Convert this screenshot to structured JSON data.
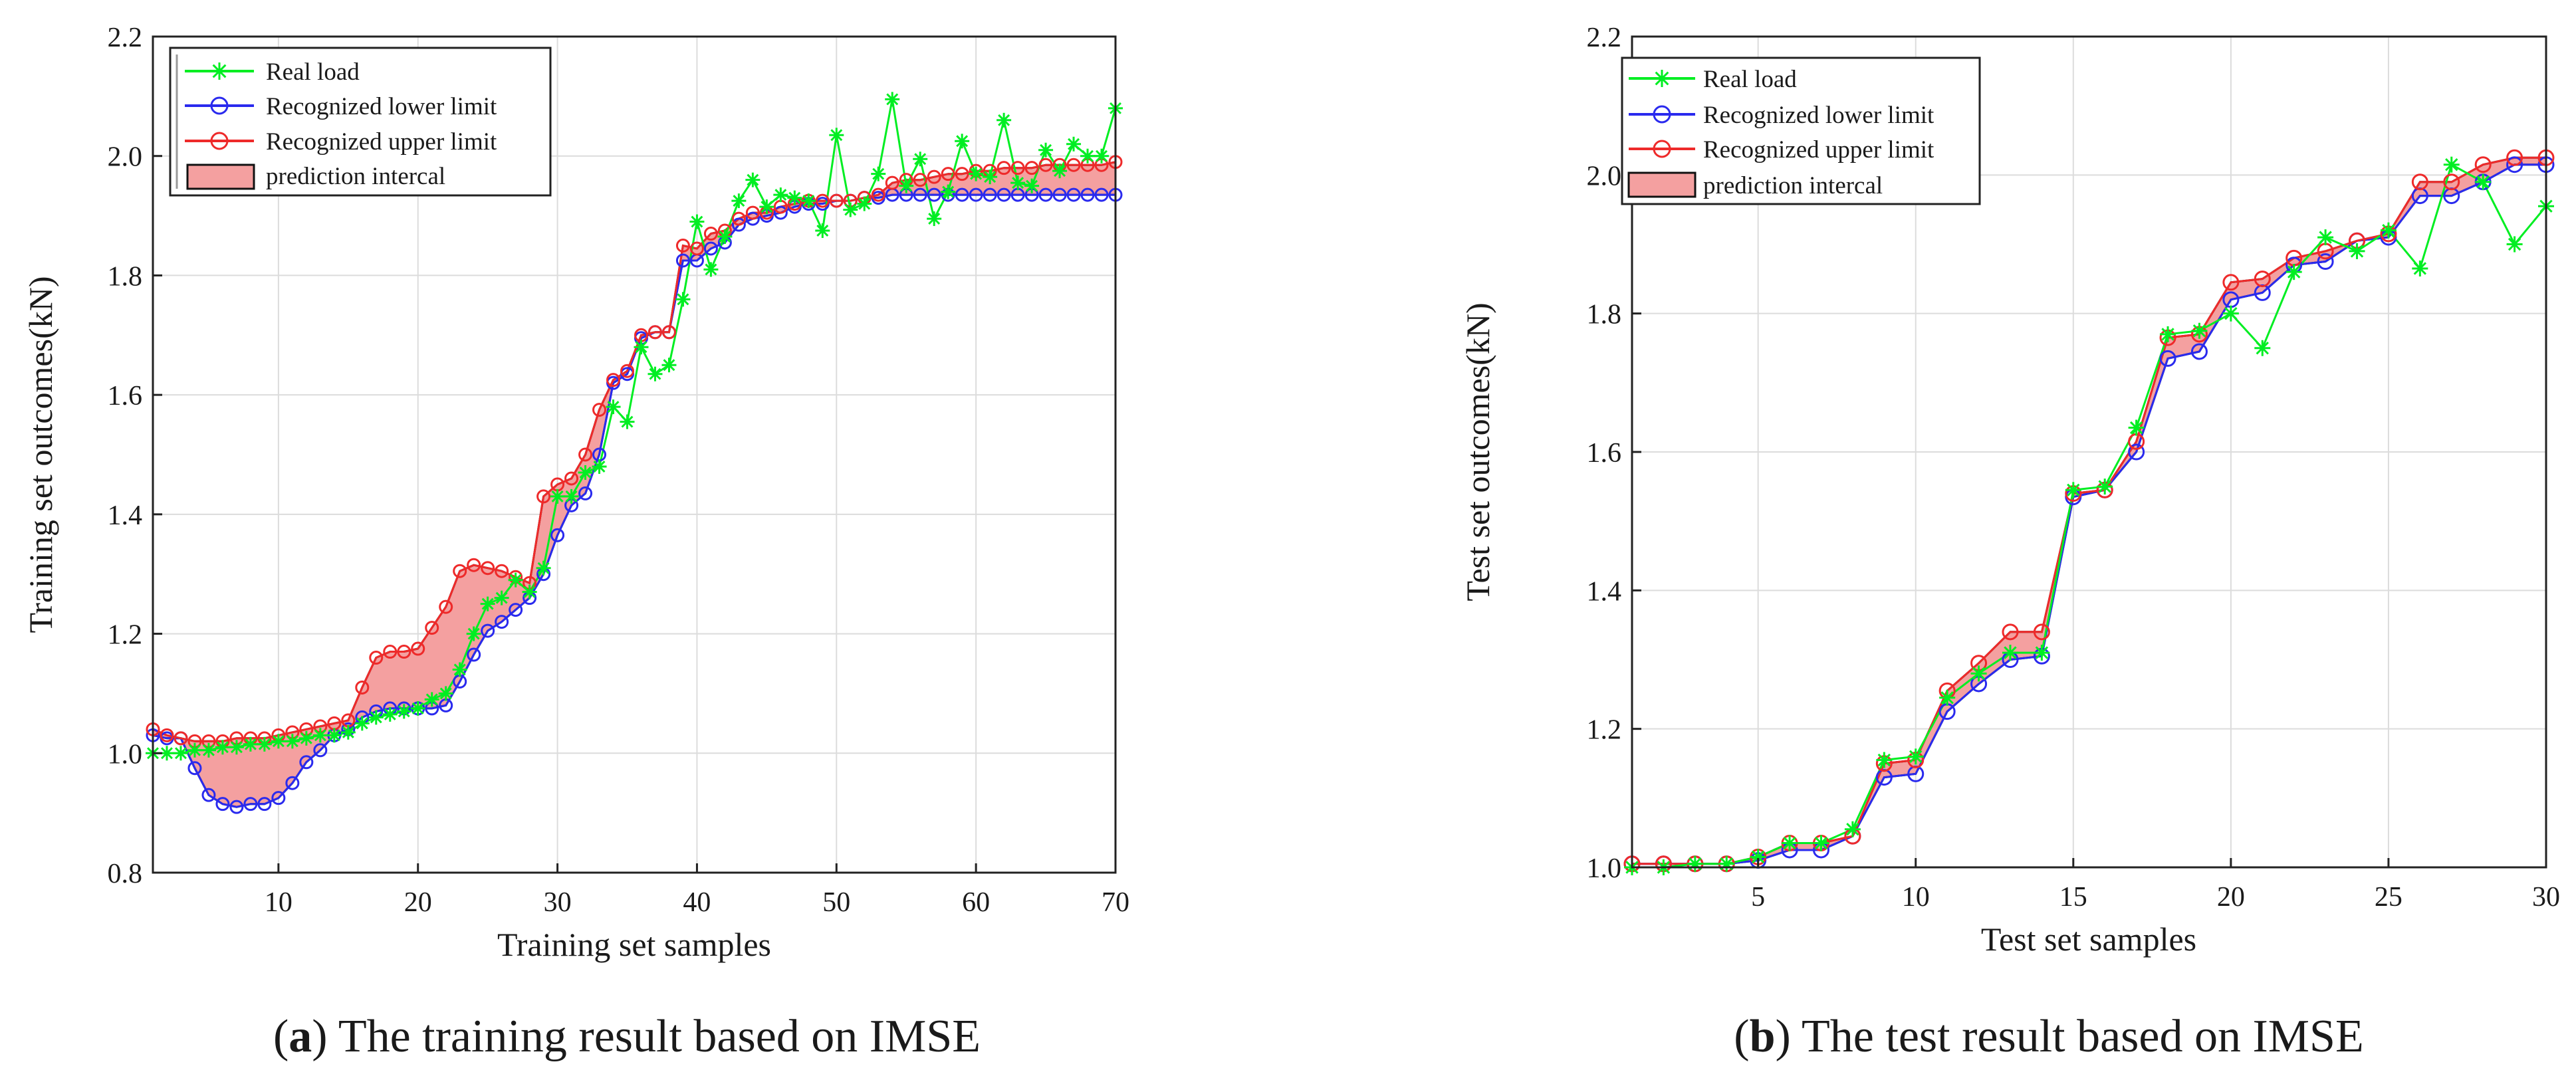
{
  "colors": {
    "real": "#00ee22",
    "lower": "#2a2aee",
    "upper": "#ee2a2a",
    "band": "#f4a0a0",
    "grid": "#dcdcdc",
    "axis": "#222222",
    "envelope": "#111111"
  },
  "icons": {
    "real": "asterisk-marker",
    "lower": "circle-marker",
    "upper": "circle-marker",
    "band": "filled-rect"
  },
  "chart_data": [
    {
      "type": "line",
      "panel": "a",
      "caption_letter": "a",
      "caption_text": ") The training result based on IMSE",
      "caption_open": "(",
      "xlabel": "Training set samples",
      "ylabel": "Training set outcomes(kN)",
      "xlim": [
        1,
        70
      ],
      "ylim": [
        0.8,
        2.2
      ],
      "xticks": [
        10,
        20,
        30,
        40,
        50,
        60,
        70
      ],
      "yticks": [
        0.8,
        1.0,
        1.2,
        1.4,
        1.6,
        1.8,
        2.0,
        2.2
      ],
      "ytick_labels": [
        "0.8",
        "1.0",
        "1.2",
        "1.4",
        "1.6",
        "1.8",
        "2.0",
        "2.2"
      ],
      "xtick_labels": [
        "10",
        "20",
        "30",
        "40",
        "50",
        "60",
        "70"
      ],
      "grid": true,
      "legend_position": "top-left",
      "legend": [
        "Real load",
        "Recognized lower limit",
        "Recognized upper limit",
        "prediction intercal"
      ],
      "x": [
        1,
        2,
        3,
        4,
        5,
        6,
        7,
        8,
        9,
        10,
        11,
        12,
        13,
        14,
        15,
        16,
        17,
        18,
        19,
        20,
        21,
        22,
        23,
        24,
        25,
        26,
        27,
        28,
        29,
        30,
        31,
        32,
        33,
        34,
        35,
        36,
        37,
        38,
        39,
        40,
        41,
        42,
        43,
        44,
        45,
        46,
        47,
        48,
        49,
        50,
        51,
        52,
        53,
        54,
        55,
        56,
        57,
        58,
        59,
        60,
        61,
        62,
        63,
        64,
        65,
        66,
        67,
        68,
        69,
        70
      ],
      "series": [
        {
          "name": "Real load",
          "key": "real",
          "values": [
            1.0,
            1.0,
            1.0,
            1.005,
            1.005,
            1.01,
            1.01,
            1.015,
            1.015,
            1.02,
            1.02,
            1.025,
            1.03,
            1.03,
            1.035,
            1.05,
            1.06,
            1.065,
            1.07,
            1.075,
            1.09,
            1.1,
            1.14,
            1.2,
            1.25,
            1.26,
            1.29,
            1.27,
            1.31,
            1.43,
            1.43,
            1.47,
            1.48,
            1.58,
            1.555,
            1.68,
            1.635,
            1.65,
            1.76,
            1.89,
            1.81,
            1.865,
            1.925,
            1.96,
            1.915,
            1.935,
            1.93,
            1.925,
            1.875,
            2.035,
            1.91,
            1.92,
            1.97,
            2.095,
            1.95,
            1.995,
            1.895,
            1.94,
            2.025,
            1.97,
            1.965,
            2.06,
            1.955,
            1.95,
            2.01,
            1.975,
            2.02,
            2.0,
            2.0,
            2.08
          ]
        },
        {
          "name": "Recognized lower limit",
          "key": "lower",
          "values": [
            1.03,
            1.025,
            1.025,
            0.975,
            0.93,
            0.915,
            0.91,
            0.915,
            0.915,
            0.925,
            0.95,
            0.985,
            1.005,
            1.03,
            1.04,
            1.06,
            1.07,
            1.075,
            1.075,
            1.075,
            1.075,
            1.08,
            1.12,
            1.165,
            1.205,
            1.22,
            1.24,
            1.26,
            1.3,
            1.365,
            1.415,
            1.435,
            1.5,
            1.62,
            1.635,
            1.695,
            1.705,
            1.705,
            1.825,
            1.825,
            1.845,
            1.855,
            1.885,
            1.895,
            1.9,
            1.905,
            1.915,
            1.92,
            1.92,
            1.925,
            1.925,
            1.93,
            1.93,
            1.935,
            1.935,
            1.935,
            1.935,
            1.935,
            1.935,
            1.935,
            1.935,
            1.935,
            1.935,
            1.935,
            1.935,
            1.935,
            1.935,
            1.935,
            1.935,
            1.935
          ]
        },
        {
          "name": "Recognized upper limit",
          "key": "upper",
          "values": [
            1.04,
            1.03,
            1.025,
            1.02,
            1.02,
            1.02,
            1.025,
            1.025,
            1.025,
            1.03,
            1.035,
            1.04,
            1.045,
            1.05,
            1.055,
            1.11,
            1.16,
            1.17,
            1.17,
            1.175,
            1.21,
            1.245,
            1.305,
            1.315,
            1.31,
            1.305,
            1.295,
            1.285,
            1.43,
            1.45,
            1.46,
            1.5,
            1.575,
            1.625,
            1.64,
            1.7,
            1.705,
            1.705,
            1.85,
            1.845,
            1.87,
            1.875,
            1.895,
            1.905,
            1.905,
            1.915,
            1.92,
            1.925,
            1.925,
            1.925,
            1.925,
            1.93,
            1.935,
            1.955,
            1.96,
            1.96,
            1.965,
            1.97,
            1.97,
            1.975,
            1.975,
            1.98,
            1.98,
            1.98,
            1.985,
            1.985,
            1.985,
            1.985,
            1.985,
            1.99
          ]
        }
      ]
    },
    {
      "type": "line",
      "panel": "b",
      "caption_letter": "b",
      "caption_text": ") The test result based on IMSE",
      "caption_open": "(",
      "xlabel": "Test set samples",
      "ylabel": "Test set outcomes(kN)",
      "xlim": [
        1,
        30
      ],
      "ylim": [
        1.0,
        2.2
      ],
      "xticks": [
        5,
        10,
        15,
        20,
        25,
        30
      ],
      "yticks": [
        1.0,
        1.2,
        1.4,
        1.6,
        1.8,
        2.0,
        2.2
      ],
      "ytick_labels": [
        "1.0",
        "1.2",
        "1.4",
        "1.6",
        "1.8",
        "2.0",
        "2.2"
      ],
      "xtick_labels": [
        "5",
        "10",
        "15",
        "20",
        "25",
        "30"
      ],
      "grid": true,
      "legend_position": "top-left",
      "legend": [
        "Real load",
        "Recognized lower limit",
        "Recognized upper limit",
        "prediction intercal"
      ],
      "x": [
        1,
        2,
        3,
        4,
        5,
        6,
        7,
        8,
        9,
        10,
        11,
        12,
        13,
        14,
        15,
        16,
        17,
        18,
        19,
        20,
        21,
        22,
        23,
        24,
        25,
        26,
        27,
        28,
        29,
        30
      ],
      "series": [
        {
          "name": "Real load",
          "key": "real",
          "values": [
            1.0,
            1.0,
            1.005,
            1.005,
            1.015,
            1.035,
            1.035,
            1.055,
            1.155,
            1.16,
            1.245,
            1.28,
            1.31,
            1.31,
            1.545,
            1.55,
            1.635,
            1.77,
            1.775,
            1.8,
            1.75,
            1.86,
            1.91,
            1.89,
            1.92,
            1.865,
            2.015,
            1.99,
            1.9,
            1.955
          ]
        },
        {
          "name": "Recognized lower limit",
          "key": "lower",
          "values": [
            1.005,
            1.005,
            1.005,
            1.005,
            1.01,
            1.025,
            1.025,
            1.045,
            1.13,
            1.135,
            1.225,
            1.265,
            1.3,
            1.305,
            1.535,
            1.545,
            1.6,
            1.735,
            1.745,
            1.82,
            1.83,
            1.87,
            1.875,
            1.905,
            1.91,
            1.97,
            1.97,
            1.99,
            2.015,
            2.015
          ]
        },
        {
          "name": "Recognized upper limit",
          "key": "upper",
          "values": [
            1.005,
            1.005,
            1.005,
            1.005,
            1.015,
            1.035,
            1.035,
            1.045,
            1.15,
            1.155,
            1.255,
            1.295,
            1.34,
            1.34,
            1.54,
            1.545,
            1.615,
            1.765,
            1.77,
            1.845,
            1.85,
            1.88,
            1.89,
            1.905,
            1.915,
            1.99,
            1.99,
            2.015,
            2.025,
            2.025
          ]
        }
      ]
    }
  ]
}
